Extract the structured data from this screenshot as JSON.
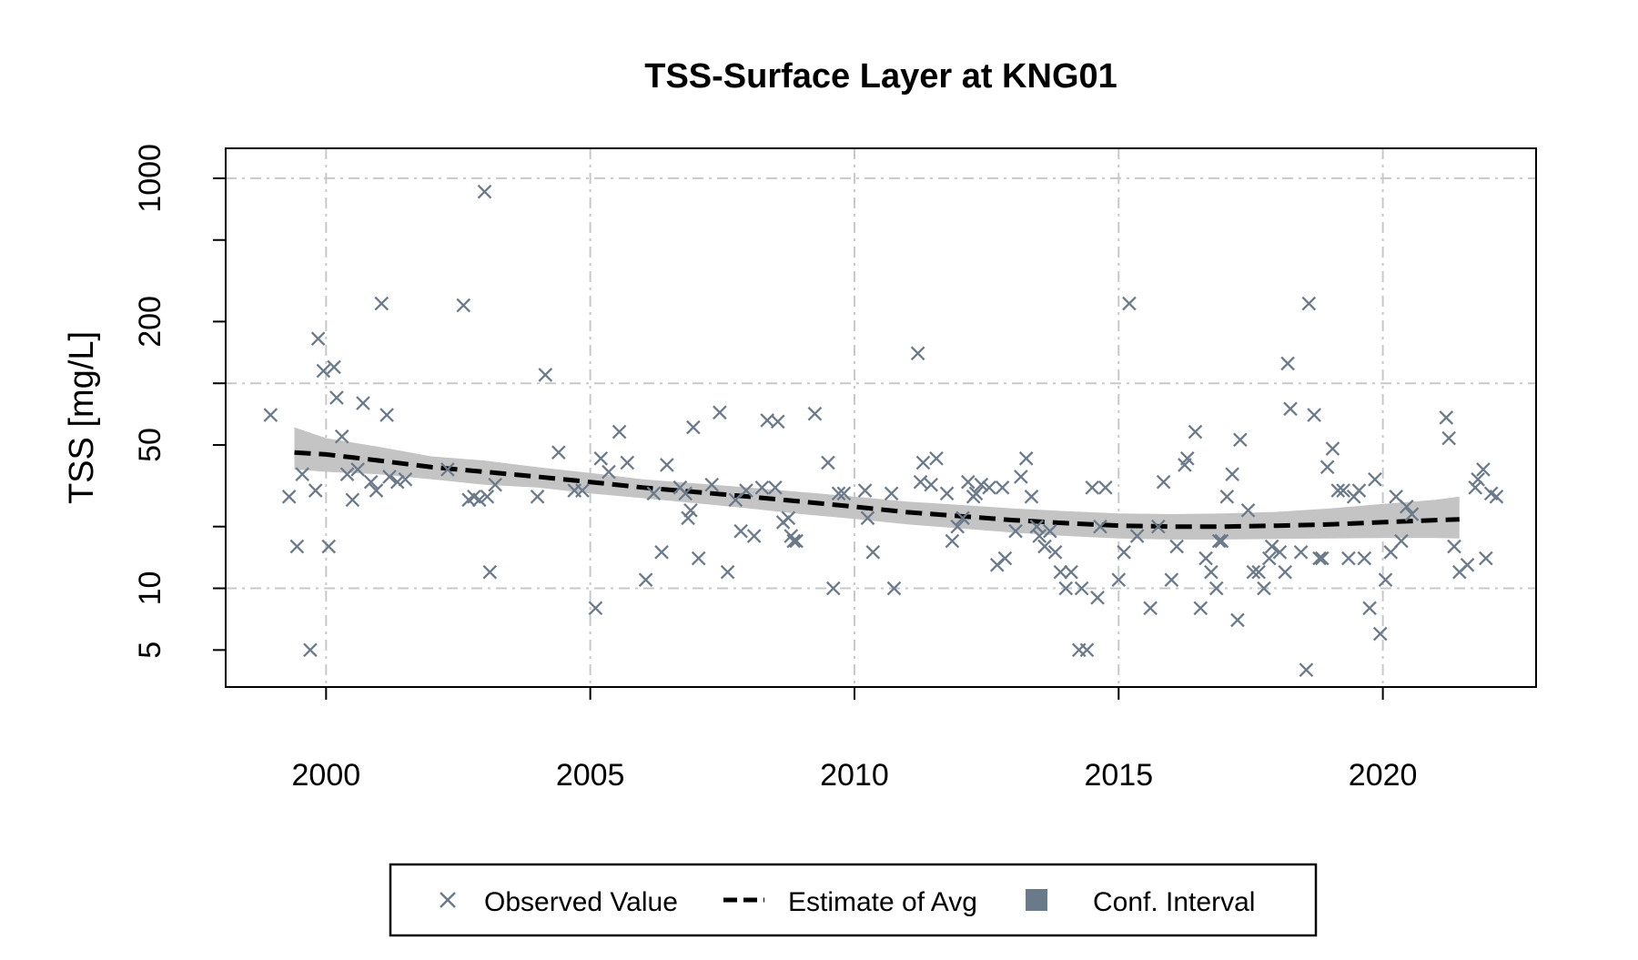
{
  "chart_data": {
    "type": "scatter",
    "title": "TSS-Surface Layer at KNG01",
    "xlabel": "",
    "ylabel": "TSS [mg/L]",
    "y_scale": "log",
    "xlim": [
      1998.1,
      2022.9
    ],
    "ylim": [
      3.3,
      1400
    ],
    "x_ticks": [
      2000,
      2005,
      2010,
      2015,
      2020
    ],
    "x_tick_labels": [
      "2000",
      "2005",
      "2010",
      "2015",
      "2020"
    ],
    "y_ticks": [
      5,
      10,
      20,
      50,
      100,
      200,
      500,
      1000
    ],
    "y_tick_labels": [
      "5",
      "10",
      "",
      "50",
      "",
      "200",
      "",
      "1000"
    ],
    "y_grid": [
      10,
      100,
      1000
    ],
    "x_grid": [
      2000,
      2005,
      2010,
      2015,
      2020
    ],
    "grid": true,
    "legend": {
      "placement": "bottom",
      "items": [
        {
          "label": "Observed Value",
          "symbol": "x"
        },
        {
          "label": "Estimate of Avg",
          "symbol": "dashed-line"
        },
        {
          "label": "Conf. Interval",
          "symbol": "square"
        }
      ]
    },
    "colors": {
      "observed": "#6b7a8a",
      "estimate": "#000000",
      "interval": "#c4c4c4",
      "interval_legend": "#6b7a8a",
      "grid": "#c8c8c8"
    },
    "series": [
      {
        "name": "Observed Value",
        "points": [
          [
            1998.95,
            70
          ],
          [
            1999.3,
            28
          ],
          [
            1999.45,
            16
          ],
          [
            1999.55,
            36
          ],
          [
            1999.7,
            5
          ],
          [
            1999.8,
            30
          ],
          [
            1999.85,
            165
          ],
          [
            1999.95,
            115
          ],
          [
            2000.05,
            16
          ],
          [
            2000.15,
            120
          ],
          [
            2000.2,
            85
          ],
          [
            2000.3,
            55
          ],
          [
            2000.4,
            36
          ],
          [
            2000.5,
            27
          ],
          [
            2000.6,
            38
          ],
          [
            2000.7,
            80
          ],
          [
            2000.85,
            33
          ],
          [
            2000.95,
            30
          ],
          [
            2001.05,
            245
          ],
          [
            2001.15,
            70
          ],
          [
            2001.2,
            35
          ],
          [
            2001.35,
            33
          ],
          [
            2001.5,
            34
          ],
          [
            2002.3,
            38
          ],
          [
            2002.6,
            240
          ],
          [
            2002.7,
            27
          ],
          [
            2002.8,
            28
          ],
          [
            2002.9,
            27
          ],
          [
            2003.0,
            860
          ],
          [
            2003.05,
            28
          ],
          [
            2003.1,
            12
          ],
          [
            2003.2,
            32
          ],
          [
            2004.0,
            28
          ],
          [
            2004.15,
            110
          ],
          [
            2004.4,
            46
          ],
          [
            2004.7,
            30
          ],
          [
            2004.85,
            30
          ],
          [
            2005.1,
            8
          ],
          [
            2005.2,
            43
          ],
          [
            2005.35,
            37
          ],
          [
            2005.55,
            58
          ],
          [
            2005.7,
            41
          ],
          [
            2006.05,
            11
          ],
          [
            2006.2,
            29
          ],
          [
            2006.35,
            15
          ],
          [
            2006.45,
            40
          ],
          [
            2006.7,
            31
          ],
          [
            2006.8,
            29
          ],
          [
            2006.85,
            22
          ],
          [
            2006.9,
            24
          ],
          [
            2006.95,
            61
          ],
          [
            2007.05,
            14
          ],
          [
            2007.3,
            32
          ],
          [
            2007.45,
            72
          ],
          [
            2007.6,
            12
          ],
          [
            2007.75,
            27
          ],
          [
            2007.85,
            19
          ],
          [
            2007.95,
            30
          ],
          [
            2008.1,
            18
          ],
          [
            2008.25,
            31
          ],
          [
            2008.35,
            66
          ],
          [
            2008.5,
            31
          ],
          [
            2008.55,
            65
          ],
          [
            2008.65,
            21
          ],
          [
            2008.75,
            22
          ],
          [
            2008.8,
            18
          ],
          [
            2008.85,
            17
          ],
          [
            2008.9,
            17
          ],
          [
            2009.25,
            71
          ],
          [
            2009.5,
            41
          ],
          [
            2009.6,
            10
          ],
          [
            2009.7,
            29
          ],
          [
            2009.8,
            29
          ],
          [
            2010.2,
            30
          ],
          [
            2010.25,
            22
          ],
          [
            2010.35,
            15
          ],
          [
            2010.7,
            29
          ],
          [
            2010.75,
            10
          ],
          [
            2011.2,
            140
          ],
          [
            2011.25,
            33
          ],
          [
            2011.3,
            41
          ],
          [
            2011.45,
            32
          ],
          [
            2011.55,
            43
          ],
          [
            2011.75,
            29
          ],
          [
            2011.85,
            17
          ],
          [
            2011.95,
            20
          ],
          [
            2012.05,
            22
          ],
          [
            2012.15,
            33
          ],
          [
            2012.25,
            28
          ],
          [
            2012.3,
            29
          ],
          [
            2012.4,
            32
          ],
          [
            2012.55,
            31
          ],
          [
            2012.7,
            13
          ],
          [
            2012.8,
            31
          ],
          [
            2012.85,
            14
          ],
          [
            2013.05,
            19
          ],
          [
            2013.15,
            35
          ],
          [
            2013.25,
            43
          ],
          [
            2013.35,
            28
          ],
          [
            2013.45,
            20
          ],
          [
            2013.5,
            18
          ],
          [
            2013.6,
            16
          ],
          [
            2013.7,
            19
          ],
          [
            2013.8,
            15
          ],
          [
            2013.9,
            12
          ],
          [
            2014.0,
            10
          ],
          [
            2014.1,
            12
          ],
          [
            2014.25,
            5
          ],
          [
            2014.3,
            10
          ],
          [
            2014.4,
            5
          ],
          [
            2014.5,
            31
          ],
          [
            2014.6,
            9
          ],
          [
            2014.65,
            20
          ],
          [
            2014.75,
            31
          ],
          [
            2015.0,
            11
          ],
          [
            2015.1,
            15
          ],
          [
            2015.2,
            245
          ],
          [
            2015.35,
            18
          ],
          [
            2015.6,
            8
          ],
          [
            2015.75,
            20
          ],
          [
            2015.85,
            33
          ],
          [
            2016.0,
            11
          ],
          [
            2016.1,
            16
          ],
          [
            2016.25,
            40
          ],
          [
            2016.3,
            43
          ],
          [
            2016.45,
            58
          ],
          [
            2016.55,
            8
          ],
          [
            2016.65,
            14
          ],
          [
            2016.75,
            12
          ],
          [
            2016.85,
            10
          ],
          [
            2016.9,
            17
          ],
          [
            2016.95,
            17
          ],
          [
            2017.05,
            28
          ],
          [
            2017.15,
            36
          ],
          [
            2017.25,
            7
          ],
          [
            2017.3,
            53
          ],
          [
            2017.45,
            24
          ],
          [
            2017.55,
            12
          ],
          [
            2017.65,
            12
          ],
          [
            2017.75,
            10
          ],
          [
            2017.85,
            14
          ],
          [
            2017.9,
            16
          ],
          [
            2018.05,
            15
          ],
          [
            2018.15,
            12
          ],
          [
            2018.2,
            125
          ],
          [
            2018.25,
            75
          ],
          [
            2018.45,
            15
          ],
          [
            2018.55,
            4
          ],
          [
            2018.6,
            245
          ],
          [
            2018.7,
            70
          ],
          [
            2018.8,
            14
          ],
          [
            2018.85,
            14
          ],
          [
            2018.95,
            39
          ],
          [
            2019.05,
            48
          ],
          [
            2019.15,
            30
          ],
          [
            2019.25,
            30
          ],
          [
            2019.35,
            14
          ],
          [
            2019.45,
            28
          ],
          [
            2019.55,
            30
          ],
          [
            2019.65,
            14
          ],
          [
            2019.75,
            8
          ],
          [
            2019.85,
            34
          ],
          [
            2019.95,
            6
          ],
          [
            2020.05,
            11
          ],
          [
            2020.15,
            15
          ],
          [
            2020.25,
            28
          ],
          [
            2020.35,
            17
          ],
          [
            2020.45,
            25
          ],
          [
            2020.55,
            23
          ],
          [
            2021.2,
            68
          ],
          [
            2021.25,
            54
          ],
          [
            2021.35,
            16
          ],
          [
            2021.45,
            12
          ],
          [
            2021.6,
            13
          ],
          [
            2021.75,
            31
          ],
          [
            2021.8,
            34
          ],
          [
            2021.9,
            38
          ],
          [
            2021.95,
            14
          ],
          [
            2022.05,
            29
          ],
          [
            2022.15,
            28
          ]
        ]
      },
      {
        "name": "Estimate of Avg",
        "x": [
          1999.4,
          2000.0,
          2001.0,
          2002.0,
          2003.0,
          2004.0,
          2005.0,
          2006.0,
          2007.0,
          2008.0,
          2009.0,
          2010.0,
          2011.0,
          2012.0,
          2013.0,
          2014.0,
          2015.0,
          2016.0,
          2017.0,
          2018.0,
          2019.0,
          2020.0,
          2021.0,
          2021.45
        ],
        "y": [
          46,
          45,
          42,
          39,
          37,
          35,
          33,
          31,
          29.5,
          28,
          26.5,
          25,
          23.5,
          22.5,
          21.5,
          20.8,
          20.2,
          20.0,
          20.0,
          20.2,
          20.5,
          21.0,
          21.5,
          21.7
        ],
        "lower": [
          38,
          37,
          36,
          34,
          32,
          31,
          29,
          27.5,
          26,
          24.5,
          23,
          21.8,
          20.5,
          19.6,
          18.7,
          18.0,
          17.5,
          17.3,
          17.3,
          17.4,
          17.5,
          17.6,
          17.6,
          17.5
        ],
        "upper": [
          61,
          54,
          49,
          44,
          42,
          39,
          36.5,
          34,
          32.5,
          31,
          29.5,
          28,
          26.5,
          25.5,
          24.5,
          23.8,
          23.2,
          23.0,
          23.2,
          23.6,
          24.5,
          25.8,
          27.0,
          28.0
        ]
      }
    ]
  }
}
